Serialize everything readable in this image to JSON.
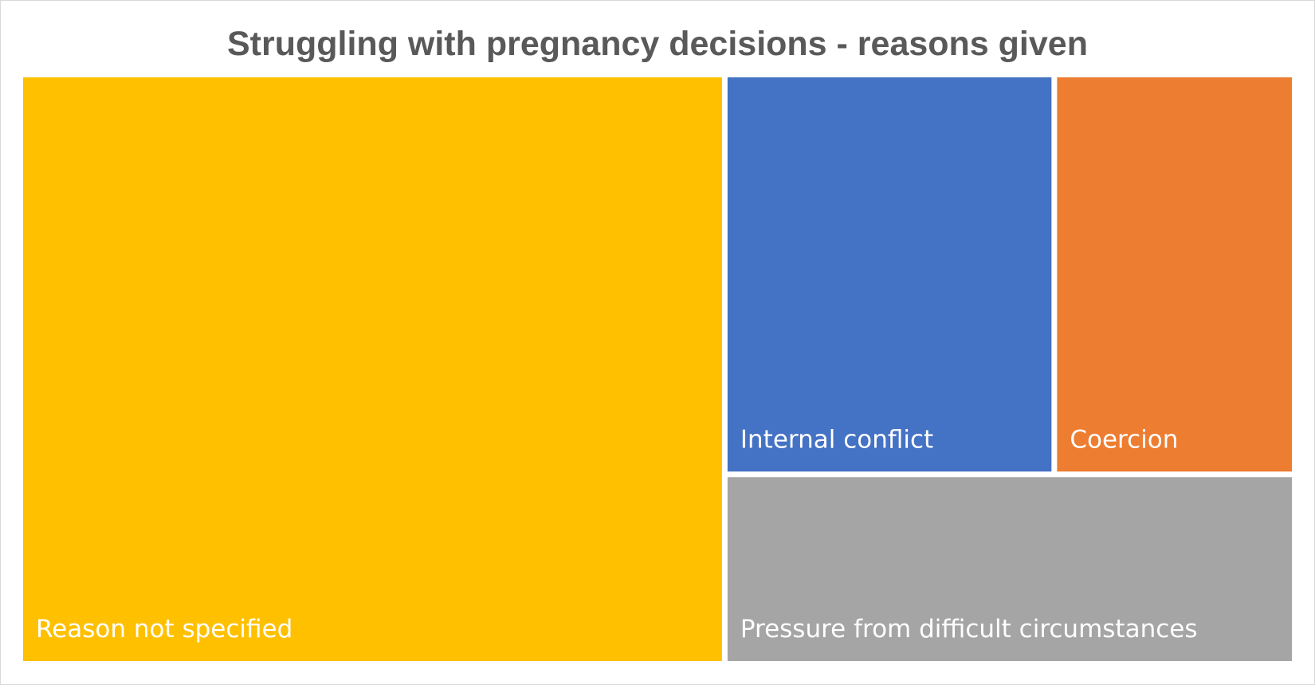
{
  "chart_data": {
    "type": "treemap",
    "title": "Struggling with pregnancy decisions - reasons given",
    "items": [
      {
        "label": "Reason not specified",
        "value": 55.3,
        "color": "#FFC000"
      },
      {
        "label": "Internal conflict",
        "value": 17.6,
        "color": "#4472C4"
      },
      {
        "label": "Coercion",
        "value": 12.8,
        "color": "#ED7D31"
      },
      {
        "label": "Pressure from difficult circumstances",
        "value": 14.3,
        "color": "#A5A5A5"
      }
    ],
    "grid": false,
    "legend": "none"
  }
}
